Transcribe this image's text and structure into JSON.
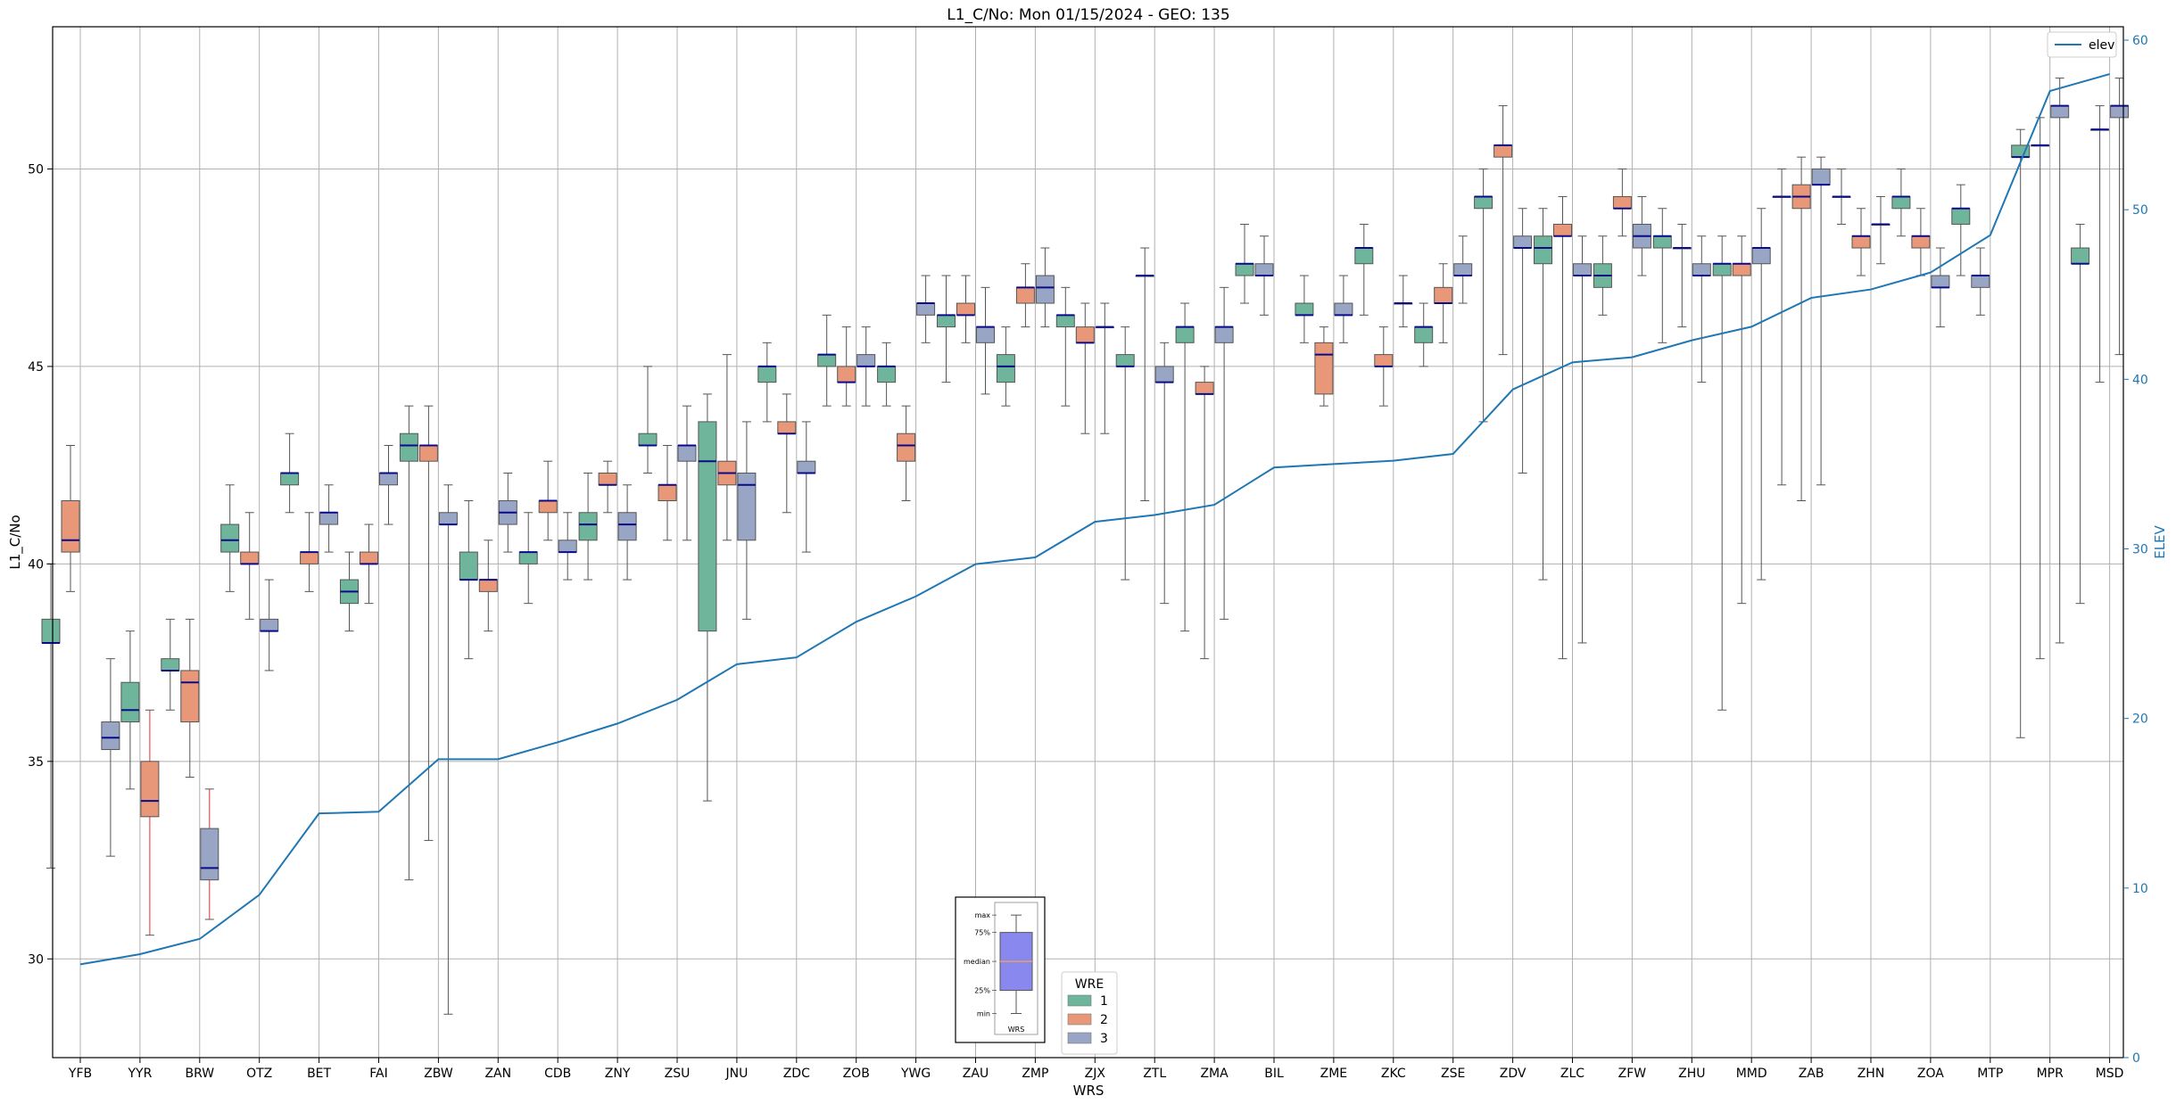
{
  "chart_data": {
    "type": "box",
    "title": "L1_C/No: Mon 01/15/2024 - GEO: 135",
    "xlabel": "WRS",
    "ylabel": "L1_C/No",
    "y2label": "ELEV",
    "ylim": [
      27.5,
      53.6
    ],
    "y2lim": [
      0,
      60.79
    ],
    "yticks": [
      30,
      35,
      40,
      45,
      50
    ],
    "y2ticks": [
      0,
      10,
      20,
      30,
      40,
      50,
      60
    ],
    "grid": true,
    "categories": [
      "YFB",
      "YYR",
      "BRW",
      "OTZ",
      "BET",
      "FAI",
      "ZBW",
      "ZAN",
      "CDB",
      "ZNY",
      "ZSU",
      "JNU",
      "ZDC",
      "ZOB",
      "YWG",
      "ZAU",
      "ZMP",
      "ZJX",
      "ZTL",
      "ZMA",
      "BIL",
      "ZME",
      "ZKC",
      "ZSE",
      "ZDV",
      "ZLC",
      "ZFW",
      "ZHU",
      "MMD",
      "ZAB",
      "ZHN",
      "ZOA",
      "MTP",
      "MPR",
      "MSD"
    ],
    "elev_legend": "elev",
    "elev": [
      5.5,
      6.1,
      7.0,
      9.6,
      14.4,
      14.5,
      17.6,
      17.6,
      18.6,
      19.7,
      21.1,
      23.2,
      23.6,
      25.7,
      27.2,
      29.1,
      29.5,
      31.6,
      32.0,
      32.6,
      34.8,
      35.0,
      35.2,
      35.6,
      39.4,
      41.0,
      41.3,
      42.3,
      43.1,
      44.8,
      45.3,
      46.3,
      48.5,
      57.0,
      58.0
    ],
    "legend": {
      "title": "WRE",
      "entries": [
        {
          "label": "1",
          "color": "#6fb59c"
        },
        {
          "label": "2",
          "color": "#e89878"
        },
        {
          "label": "3",
          "color": "#98a5c5"
        }
      ]
    },
    "key_box": {
      "labels": [
        "max",
        "75%",
        "median",
        "25%",
        "min"
      ],
      "xlabel": "WRS",
      "values": {
        "max": 0.9,
        "q3": 0.75,
        "median": 0.5,
        "q1": 0.25,
        "min": 0.05
      }
    },
    "boxes": [
      {
        "cat": "YFB",
        "wre": 1,
        "min": 32.3,
        "q1": 38.0,
        "med": 38.0,
        "q3": 38.6,
        "max": 40.0
      },
      {
        "cat": "YFB",
        "wre": 2,
        "min": 39.3,
        "q1": 40.3,
        "med": 40.6,
        "q3": 41.6,
        "max": 43.0
      },
      {
        "cat": "YYR",
        "wre": 3,
        "min": 32.6,
        "q1": 35.3,
        "med": 35.6,
        "q3": 36.0,
        "max": 37.6
      },
      {
        "cat": "YYR",
        "wre": 1,
        "min": 34.3,
        "q1": 36.0,
        "med": 36.3,
        "q3": 37.0,
        "max": 38.3
      },
      {
        "cat": "YYR",
        "wre": 2,
        "min": 30.6,
        "q1": 33.6,
        "med": 34.0,
        "q3": 35.0,
        "max": 36.3,
        "red": true
      },
      {
        "cat": "BRW",
        "wre": 1,
        "min": 36.3,
        "q1": 37.3,
        "med": 37.3,
        "q3": 37.6,
        "max": 38.6
      },
      {
        "cat": "BRW",
        "wre": 2,
        "min": 34.6,
        "q1": 36.0,
        "med": 37.0,
        "q3": 37.3,
        "max": 38.6
      },
      {
        "cat": "BRW",
        "wre": 3,
        "min": 31.0,
        "q1": 32.0,
        "med": 32.3,
        "q3": 33.3,
        "max": 34.3,
        "red": true
      },
      {
        "cat": "OTZ",
        "wre": 1,
        "min": 39.3,
        "q1": 40.3,
        "med": 40.6,
        "q3": 41.0,
        "max": 42.0
      },
      {
        "cat": "OTZ",
        "wre": 2,
        "min": 38.6,
        "q1": 40.0,
        "med": 40.0,
        "q3": 40.3,
        "max": 41.3
      },
      {
        "cat": "OTZ",
        "wre": 3,
        "min": 37.3,
        "q1": 38.3,
        "med": 38.3,
        "q3": 38.6,
        "max": 39.6
      },
      {
        "cat": "BET",
        "wre": 1,
        "min": 41.3,
        "q1": 42.0,
        "med": 42.3,
        "q3": 42.3,
        "max": 43.3
      },
      {
        "cat": "BET",
        "wre": 2,
        "min": 39.3,
        "q1": 40.0,
        "med": 40.3,
        "q3": 40.3,
        "max": 41.3
      },
      {
        "cat": "BET",
        "wre": 3,
        "min": 40.3,
        "q1": 41.0,
        "med": 41.3,
        "q3": 41.3,
        "max": 42.0
      },
      {
        "cat": "FAI",
        "wre": 1,
        "min": 38.3,
        "q1": 39.0,
        "med": 39.3,
        "q3": 39.6,
        "max": 40.3
      },
      {
        "cat": "FAI",
        "wre": 2,
        "min": 39.0,
        "q1": 40.0,
        "med": 40.0,
        "q3": 40.3,
        "max": 41.0
      },
      {
        "cat": "FAI",
        "wre": 3,
        "min": 41.0,
        "q1": 42.0,
        "med": 42.3,
        "q3": 42.3,
        "max": 43.0
      },
      {
        "cat": "ZBW",
        "wre": 1,
        "min": 32.0,
        "q1": 42.6,
        "med": 43.0,
        "q3": 43.3,
        "max": 44.0
      },
      {
        "cat": "ZBW",
        "wre": 2,
        "min": 33.0,
        "q1": 42.6,
        "med": 43.0,
        "q3": 43.0,
        "max": 44.0
      },
      {
        "cat": "ZBW",
        "wre": 3,
        "min": 28.6,
        "q1": 41.0,
        "med": 41.0,
        "q3": 41.3,
        "max": 42.0
      },
      {
        "cat": "ZAN",
        "wre": 1,
        "min": 37.6,
        "q1": 39.6,
        "med": 39.6,
        "q3": 40.3,
        "max": 41.6
      },
      {
        "cat": "ZAN",
        "wre": 2,
        "min": 38.3,
        "q1": 39.3,
        "med": 39.6,
        "q3": 39.6,
        "max": 40.6
      },
      {
        "cat": "ZAN",
        "wre": 3,
        "min": 40.3,
        "q1": 41.0,
        "med": 41.3,
        "q3": 41.6,
        "max": 42.3
      },
      {
        "cat": "CDB",
        "wre": 1,
        "min": 39.0,
        "q1": 40.0,
        "med": 40.3,
        "q3": 40.3,
        "max": 41.3
      },
      {
        "cat": "CDB",
        "wre": 2,
        "min": 40.6,
        "q1": 41.3,
        "med": 41.6,
        "q3": 41.6,
        "max": 42.6
      },
      {
        "cat": "CDB",
        "wre": 3,
        "min": 39.6,
        "q1": 40.3,
        "med": 40.3,
        "q3": 40.6,
        "max": 41.3
      },
      {
        "cat": "ZNY",
        "wre": 1,
        "min": 39.6,
        "q1": 40.6,
        "med": 41.0,
        "q3": 41.3,
        "max": 42.3
      },
      {
        "cat": "ZNY",
        "wre": 2,
        "min": 41.3,
        "q1": 42.0,
        "med": 42.0,
        "q3": 42.3,
        "max": 42.6
      },
      {
        "cat": "ZNY",
        "wre": 3,
        "min": 39.6,
        "q1": 40.6,
        "med": 41.0,
        "q3": 41.3,
        "max": 42.0
      },
      {
        "cat": "ZSU",
        "wre": 1,
        "min": 42.3,
        "q1": 43.0,
        "med": 43.0,
        "q3": 43.3,
        "max": 45.0
      },
      {
        "cat": "ZSU",
        "wre": 2,
        "min": 40.6,
        "q1": 41.6,
        "med": 42.0,
        "q3": 42.0,
        "max": 43.0
      },
      {
        "cat": "ZSU",
        "wre": 3,
        "min": 40.6,
        "q1": 42.6,
        "med": 43.0,
        "q3": 43.0,
        "max": 44.0
      },
      {
        "cat": "JNU",
        "wre": 1,
        "min": 34.0,
        "q1": 38.3,
        "med": 42.6,
        "q3": 43.6,
        "max": 44.3
      },
      {
        "cat": "JNU",
        "wre": 2,
        "min": 40.6,
        "q1": 42.0,
        "med": 42.3,
        "q3": 42.6,
        "max": 45.3
      },
      {
        "cat": "JNU",
        "wre": 3,
        "min": 38.6,
        "q1": 40.6,
        "med": 42.0,
        "q3": 42.3,
        "max": 43.6
      },
      {
        "cat": "ZDC",
        "wre": 1,
        "min": 43.6,
        "q1": 44.6,
        "med": 45.0,
        "q3": 45.0,
        "max": 45.6
      },
      {
        "cat": "ZDC",
        "wre": 2,
        "min": 41.3,
        "q1": 43.3,
        "med": 43.3,
        "q3": 43.6,
        "max": 44.3
      },
      {
        "cat": "ZDC",
        "wre": 3,
        "min": 40.3,
        "q1": 42.3,
        "med": 42.3,
        "q3": 42.6,
        "max": 43.6
      },
      {
        "cat": "ZOB",
        "wre": 1,
        "min": 44.0,
        "q1": 45.0,
        "med": 45.3,
        "q3": 45.3,
        "max": 46.3
      },
      {
        "cat": "ZOB",
        "wre": 2,
        "min": 44.0,
        "q1": 44.6,
        "med": 44.6,
        "q3": 45.0,
        "max": 46.0
      },
      {
        "cat": "ZOB",
        "wre": 3,
        "min": 44.0,
        "q1": 45.0,
        "med": 45.0,
        "q3": 45.3,
        "max": 46.0
      },
      {
        "cat": "YWG",
        "wre": 1,
        "min": 44.0,
        "q1": 44.6,
        "med": 45.0,
        "q3": 45.0,
        "max": 45.6
      },
      {
        "cat": "YWG",
        "wre": 2,
        "min": 41.6,
        "q1": 42.6,
        "med": 43.0,
        "q3": 43.3,
        "max": 44.0
      },
      {
        "cat": "YWG",
        "wre": 3,
        "min": 45.6,
        "q1": 46.3,
        "med": 46.6,
        "q3": 46.6,
        "max": 47.3
      },
      {
        "cat": "ZAU",
        "wre": 1,
        "min": 44.6,
        "q1": 46.0,
        "med": 46.3,
        "q3": 46.3,
        "max": 47.3
      },
      {
        "cat": "ZAU",
        "wre": 2,
        "min": 45.6,
        "q1": 46.3,
        "med": 46.3,
        "q3": 46.6,
        "max": 47.3
      },
      {
        "cat": "ZAU",
        "wre": 3,
        "min": 44.3,
        "q1": 45.6,
        "med": 46.0,
        "q3": 46.0,
        "max": 47.0
      },
      {
        "cat": "ZMP",
        "wre": 1,
        "min": 44.0,
        "q1": 44.6,
        "med": 45.0,
        "q3": 45.3,
        "max": 46.0
      },
      {
        "cat": "ZMP",
        "wre": 2,
        "min": 46.0,
        "q1": 46.6,
        "med": 47.0,
        "q3": 47.0,
        "max": 47.6
      },
      {
        "cat": "ZMP",
        "wre": 3,
        "min": 46.0,
        "q1": 46.6,
        "med": 47.0,
        "q3": 47.3,
        "max": 48.0
      },
      {
        "cat": "ZJX",
        "wre": 1,
        "min": 44.0,
        "q1": 46.0,
        "med": 46.3,
        "q3": 46.3,
        "max": 47.0
      },
      {
        "cat": "ZJX",
        "wre": 2,
        "min": 43.3,
        "q1": 45.6,
        "med": 45.6,
        "q3": 46.0,
        "max": 46.6
      },
      {
        "cat": "ZJX",
        "wre": 3,
        "min": 43.3,
        "q1": 46.0,
        "med": 46.0,
        "q3": 46.0,
        "max": 46.6
      },
      {
        "cat": "ZTL",
        "wre": 1,
        "min": 39.6,
        "q1": 45.0,
        "med": 45.0,
        "q3": 45.3,
        "max": 46.0
      },
      {
        "cat": "ZTL",
        "wre": 2,
        "min": 41.6,
        "q1": 47.3,
        "med": 47.3,
        "q3": 47.3,
        "max": 48.0
      },
      {
        "cat": "ZTL",
        "wre": 3,
        "min": 39.0,
        "q1": 44.6,
        "med": 44.6,
        "q3": 45.0,
        "max": 45.6
      },
      {
        "cat": "ZMA",
        "wre": 1,
        "min": 38.3,
        "q1": 45.6,
        "med": 46.0,
        "q3": 46.0,
        "max": 46.6
      },
      {
        "cat": "ZMA",
        "wre": 2,
        "min": 37.6,
        "q1": 44.3,
        "med": 44.3,
        "q3": 44.6,
        "max": 45.0
      },
      {
        "cat": "ZMA",
        "wre": 3,
        "min": 38.6,
        "q1": 45.6,
        "med": 46.0,
        "q3": 46.0,
        "max": 47.0
      },
      {
        "cat": "BIL",
        "wre": 1,
        "min": 46.6,
        "q1": 47.3,
        "med": 47.6,
        "q3": 47.6,
        "max": 48.6
      },
      {
        "cat": "BIL",
        "wre": 3,
        "min": 46.3,
        "q1": 47.3,
        "med": 47.3,
        "q3": 47.6,
        "max": 48.3
      },
      {
        "cat": "ZME",
        "wre": 1,
        "min": 45.6,
        "q1": 46.3,
        "med": 46.3,
        "q3": 46.6,
        "max": 47.3
      },
      {
        "cat": "ZME",
        "wre": 2,
        "min": 44.0,
        "q1": 44.3,
        "med": 45.3,
        "q3": 45.6,
        "max": 46.0
      },
      {
        "cat": "ZME",
        "wre": 3,
        "min": 45.6,
        "q1": 46.3,
        "med": 46.3,
        "q3": 46.6,
        "max": 47.3
      },
      {
        "cat": "ZKC",
        "wre": 1,
        "min": 46.3,
        "q1": 47.6,
        "med": 48.0,
        "q3": 48.0,
        "max": 48.6
      },
      {
        "cat": "ZKC",
        "wre": 2,
        "min": 44.0,
        "q1": 45.0,
        "med": 45.0,
        "q3": 45.3,
        "max": 46.0
      },
      {
        "cat": "ZKC",
        "wre": 3,
        "min": 46.0,
        "q1": 46.6,
        "med": 46.6,
        "q3": 46.6,
        "max": 47.3
      },
      {
        "cat": "ZSE",
        "wre": 1,
        "min": 45.0,
        "q1": 45.6,
        "med": 46.0,
        "q3": 46.0,
        "max": 46.6
      },
      {
        "cat": "ZSE",
        "wre": 2,
        "min": 45.6,
        "q1": 46.6,
        "med": 46.6,
        "q3": 47.0,
        "max": 47.6
      },
      {
        "cat": "ZSE",
        "wre": 3,
        "min": 46.6,
        "q1": 47.3,
        "med": 47.3,
        "q3": 47.6,
        "max": 48.3
      },
      {
        "cat": "ZDV",
        "wre": 1,
        "min": 43.6,
        "q1": 49.0,
        "med": 49.3,
        "q3": 49.3,
        "max": 50.0
      },
      {
        "cat": "ZDV",
        "wre": 2,
        "min": 45.3,
        "q1": 50.3,
        "med": 50.6,
        "q3": 50.6,
        "max": 51.6
      },
      {
        "cat": "ZDV",
        "wre": 3,
        "min": 42.3,
        "q1": 48.0,
        "med": 48.0,
        "q3": 48.3,
        "max": 49.0
      },
      {
        "cat": "ZLC",
        "wre": 1,
        "min": 39.6,
        "q1": 47.6,
        "med": 48.0,
        "q3": 48.3,
        "max": 49.0
      },
      {
        "cat": "ZLC",
        "wre": 2,
        "min": 37.6,
        "q1": 48.3,
        "med": 48.3,
        "q3": 48.6,
        "max": 49.3
      },
      {
        "cat": "ZLC",
        "wre": 3,
        "min": 38.0,
        "q1": 47.3,
        "med": 47.3,
        "q3": 47.6,
        "max": 48.3
      },
      {
        "cat": "ZFW",
        "wre": 1,
        "min": 46.3,
        "q1": 47.0,
        "med": 47.3,
        "q3": 47.6,
        "max": 48.3
      },
      {
        "cat": "ZFW",
        "wre": 2,
        "min": 48.3,
        "q1": 49.0,
        "med": 49.0,
        "q3": 49.3,
        "max": 50.0
      },
      {
        "cat": "ZFW",
        "wre": 3,
        "min": 47.3,
        "q1": 48.0,
        "med": 48.3,
        "q3": 48.6,
        "max": 49.3
      },
      {
        "cat": "ZHU",
        "wre": 1,
        "min": 45.6,
        "q1": 48.0,
        "med": 48.3,
        "q3": 48.3,
        "max": 49.0
      },
      {
        "cat": "ZHU",
        "wre": 2,
        "min": 46.0,
        "q1": 48.0,
        "med": 48.0,
        "q3": 48.0,
        "max": 48.6
      },
      {
        "cat": "ZHU",
        "wre": 3,
        "min": 44.6,
        "q1": 47.3,
        "med": 47.3,
        "q3": 47.6,
        "max": 48.3
      },
      {
        "cat": "MMD",
        "wre": 1,
        "min": 36.3,
        "q1": 47.3,
        "med": 47.6,
        "q3": 47.6,
        "max": 48.3
      },
      {
        "cat": "MMD",
        "wre": 2,
        "min": 39.0,
        "q1": 47.3,
        "med": 47.6,
        "q3": 47.6,
        "max": 48.3
      },
      {
        "cat": "MMD",
        "wre": 3,
        "min": 39.6,
        "q1": 47.6,
        "med": 48.0,
        "q3": 48.0,
        "max": 49.0
      },
      {
        "cat": "ZAB",
        "wre": 1,
        "min": 42.0,
        "q1": 49.3,
        "med": 49.3,
        "q3": 49.3,
        "max": 50.0
      },
      {
        "cat": "ZAB",
        "wre": 2,
        "min": 41.6,
        "q1": 49.0,
        "med": 49.3,
        "q3": 49.6,
        "max": 50.3
      },
      {
        "cat": "ZAB",
        "wre": 3,
        "min": 42.0,
        "q1": 49.6,
        "med": 49.6,
        "q3": 50.0,
        "max": 50.3
      },
      {
        "cat": "ZHN",
        "wre": 1,
        "min": 48.6,
        "q1": 49.3,
        "med": 49.3,
        "q3": 49.3,
        "max": 50.0
      },
      {
        "cat": "ZHN",
        "wre": 2,
        "min": 47.3,
        "q1": 48.0,
        "med": 48.3,
        "q3": 48.3,
        "max": 49.0
      },
      {
        "cat": "ZHN",
        "wre": 3,
        "min": 47.6,
        "q1": 48.6,
        "med": 48.6,
        "q3": 48.6,
        "max": 49.3
      },
      {
        "cat": "ZOA",
        "wre": 1,
        "min": 48.3,
        "q1": 49.0,
        "med": 49.3,
        "q3": 49.3,
        "max": 50.0
      },
      {
        "cat": "ZOA",
        "wre": 2,
        "min": 47.3,
        "q1": 48.0,
        "med": 48.3,
        "q3": 48.3,
        "max": 49.0
      },
      {
        "cat": "ZOA",
        "wre": 3,
        "min": 46.0,
        "q1": 47.0,
        "med": 47.0,
        "q3": 47.3,
        "max": 48.0
      },
      {
        "cat": "MTP",
        "wre": 1,
        "min": 47.3,
        "q1": 48.6,
        "med": 49.0,
        "q3": 49.0,
        "max": 49.6
      },
      {
        "cat": "MTP",
        "wre": 3,
        "min": 46.3,
        "q1": 47.0,
        "med": 47.3,
        "q3": 47.3,
        "max": 48.0
      },
      {
        "cat": "MPR",
        "wre": 1,
        "min": 35.6,
        "q1": 50.3,
        "med": 50.3,
        "q3": 50.6,
        "max": 51.0
      },
      {
        "cat": "MPR",
        "wre": 2,
        "min": 37.6,
        "q1": 50.6,
        "med": 50.6,
        "q3": 50.6,
        "max": 51.3
      },
      {
        "cat": "MPR",
        "wre": 3,
        "min": 38.0,
        "q1": 51.3,
        "med": 51.6,
        "q3": 51.6,
        "max": 52.3
      },
      {
        "cat": "MSD",
        "wre": 1,
        "min": 39.0,
        "q1": 47.6,
        "med": 47.6,
        "q3": 48.0,
        "max": 48.6
      },
      {
        "cat": "MSD",
        "wre": 2,
        "min": 44.6,
        "q1": 51.0,
        "med": 51.0,
        "q3": 51.0,
        "max": 51.6
      },
      {
        "cat": "MSD",
        "wre": 3,
        "min": 45.3,
        "q1": 51.3,
        "med": 51.6,
        "q3": 51.6,
        "max": 52.3
      }
    ]
  }
}
